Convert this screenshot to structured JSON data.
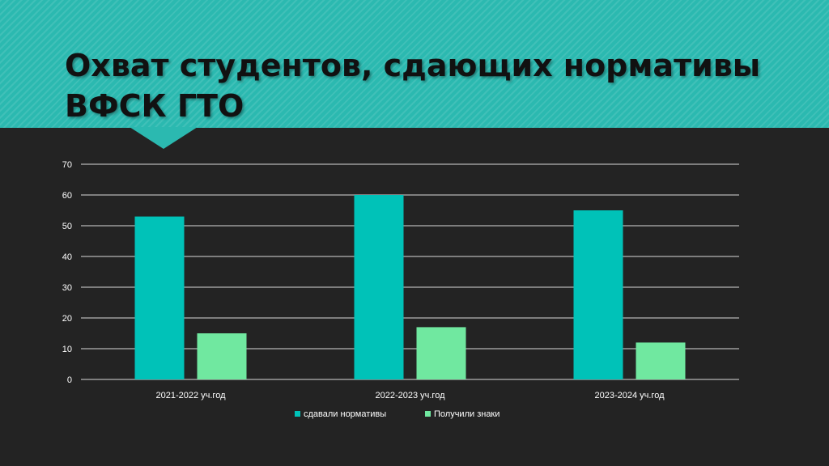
{
  "slide": {
    "title": "Охват студентов, сдающих нормативы ВФСК ГТО"
  },
  "colors": {
    "banner": "#2bb9b0",
    "background": "#232323",
    "series_1": "#00c2b8",
    "series_2": "#70e8a0",
    "gridline": "#d9d9d9",
    "text": "#ffffff"
  },
  "chart_data": {
    "type": "bar",
    "categories": [
      "2021-2022 уч.год",
      "2022-2023 уч.год",
      "2023-2024 уч.год"
    ],
    "series": [
      {
        "name": "сдавали нормативы",
        "values": [
          53,
          60,
          55
        ],
        "color": "#00c2b8"
      },
      {
        "name": "Получили знаки",
        "values": [
          15,
          17,
          12
        ],
        "color": "#70e8a0"
      }
    ],
    "ylim": [
      0,
      70
    ],
    "yticks": [
      0,
      10,
      20,
      30,
      40,
      50,
      60,
      70
    ],
    "grid": true,
    "legend": "bottom"
  }
}
